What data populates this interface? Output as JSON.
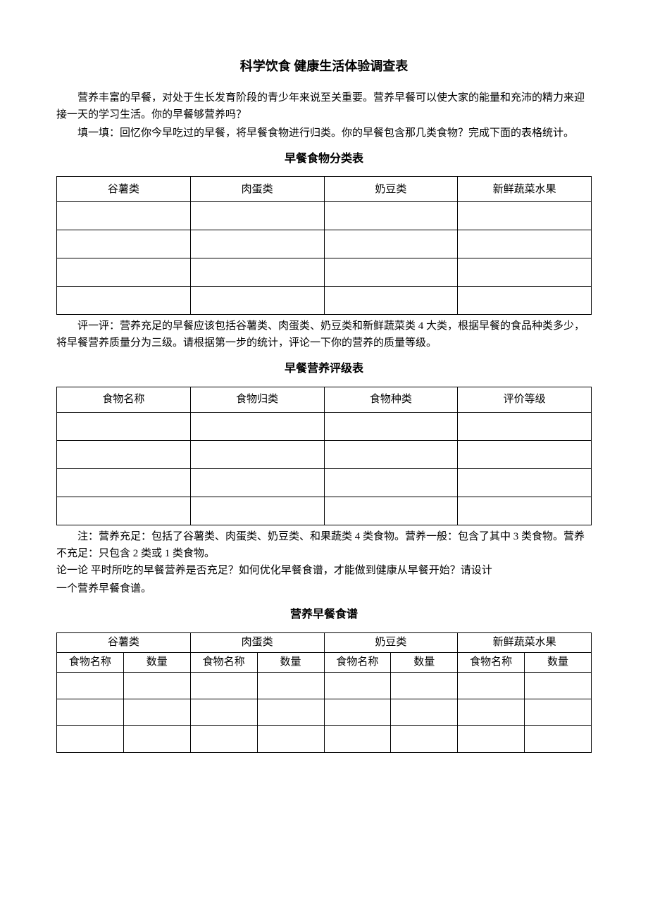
{
  "title": "科学饮食  健康生活体验调查表",
  "intro": {
    "p1": "营养丰富的早餐，对处于生长发育阶段的青少年来说至关重要。营养早餐可以使大家的能量和充沛的精力来迎接一天的学习生活。你的早餐够营养吗？",
    "p2": "填一填：回忆你今早吃过的早餐，将早餐食物进行归类。你的早餐包含那几类食物？完成下面的表格统计。"
  },
  "section1": {
    "title": "早餐食物分类表",
    "headers": [
      "谷薯类",
      "肉蛋类",
      "奶豆类",
      "新鲜蔬菜水果"
    ],
    "rows": 4,
    "after": "评一评：营养充足的早餐应该包括谷薯类、肉蛋类、奶豆类和新鲜蔬菜类 4 大类，根据早餐的食品种类多少，将早餐营养质量分为三级。请根据第一步的统计，评论一下你的营养的质量等级。"
  },
  "section2": {
    "title": "早餐营养评级表",
    "headers": [
      "食物名称",
      "食物归类",
      "食物种类",
      "评价等级"
    ],
    "rows": 4,
    "note": "注：营养充足：包括了谷薯类、肉蛋类、奶豆类、和果蔬类 4 类食物。营养一般：包含了其中 3 类食物。营养不充足：只包含 2 类或 1 类食物。",
    "discuss1": "论一论 平时所吃的早餐营养是否充足？如何优化早餐食谱，才能做到健康从早餐开始？请设计",
    "discuss2": "一个营养早餐食谱。"
  },
  "section3": {
    "title": "营养早餐食谱",
    "groupHeaders": [
      "谷薯类",
      "肉蛋类",
      "奶豆类",
      "新鲜蔬菜水果"
    ],
    "subHeaders": [
      "食物名称",
      "数量",
      "食物名称",
      "数量",
      "食物名称",
      "数量",
      "食物名称",
      "数量"
    ],
    "rows": 3
  }
}
